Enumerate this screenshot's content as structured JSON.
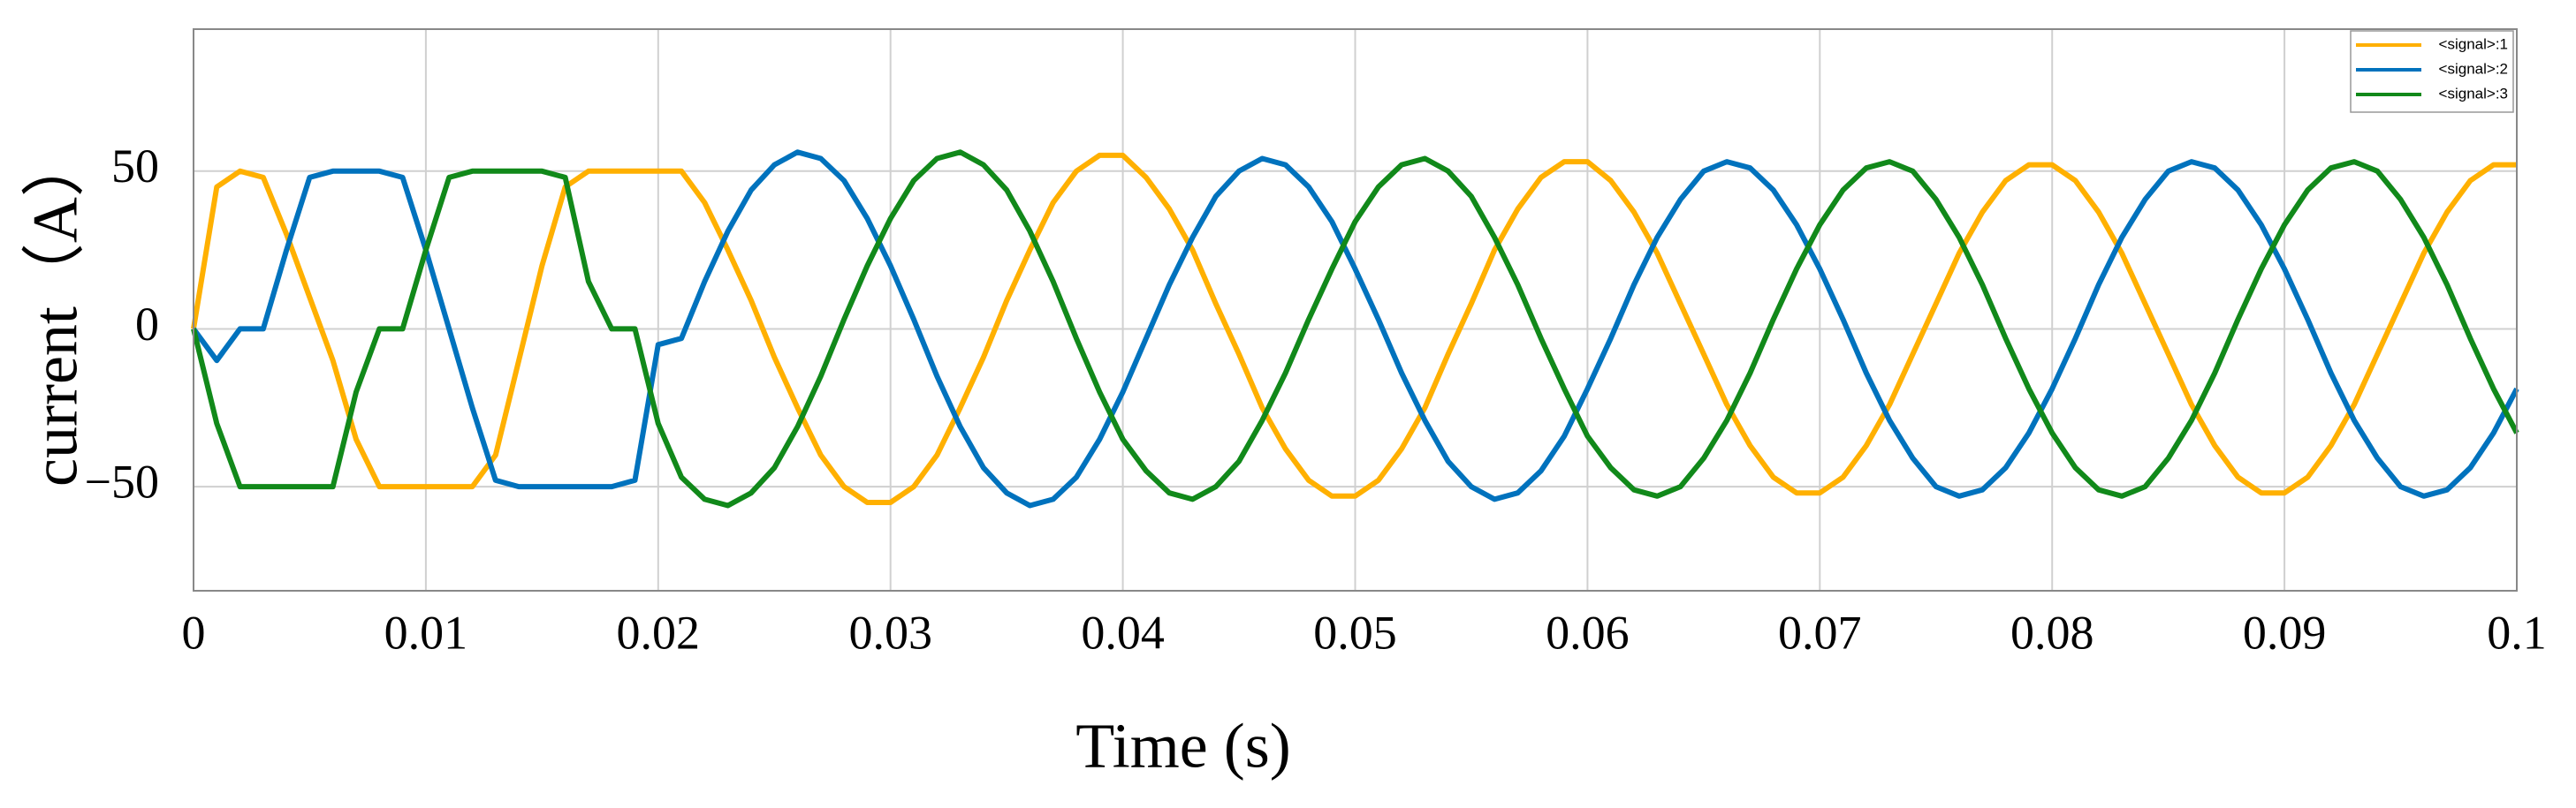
{
  "chart_data": {
    "type": "line",
    "x_label": "Time (s)",
    "y_label": "current（A）",
    "xlim": [
      0,
      0.1
    ],
    "xticks": [
      0,
      0.01,
      0.02,
      0.03,
      0.04,
      0.05,
      0.06,
      0.07,
      0.08,
      0.09,
      0.1
    ],
    "ylim": [
      -83,
      95
    ],
    "yticks": [
      {
        "value": -50,
        "label": "−50"
      },
      0,
      50
    ],
    "grid": true,
    "legend": "top-right",
    "x": [
      0,
      0.001,
      0.002,
      0.003,
      0.004,
      0.005,
      0.006,
      0.007,
      0.008,
      0.009,
      0.01,
      0.011,
      0.012,
      0.013,
      0.014,
      0.015,
      0.016,
      0.017,
      0.018,
      0.019,
      0.02,
      0.021,
      0.022,
      0.023,
      0.024,
      0.025,
      0.026,
      0.027,
      0.028,
      0.029,
      0.03,
      0.031,
      0.032,
      0.033,
      0.034,
      0.035,
      0.036,
      0.037,
      0.038,
      0.039,
      0.04,
      0.041,
      0.042,
      0.043,
      0.044,
      0.045,
      0.046,
      0.047,
      0.048,
      0.049,
      0.05,
      0.051,
      0.052,
      0.053,
      0.054,
      0.055,
      0.056,
      0.057,
      0.058,
      0.059,
      0.06,
      0.061,
      0.062,
      0.063,
      0.064,
      0.065,
      0.066,
      0.067,
      0.068,
      0.069,
      0.07,
      0.071,
      0.072,
      0.073,
      0.074,
      0.075,
      0.076,
      0.077,
      0.078,
      0.079,
      0.08,
      0.081,
      0.082,
      0.083,
      0.084,
      0.085,
      0.086,
      0.087,
      0.088,
      0.089,
      0.09,
      0.091,
      0.092,
      0.093,
      0.094,
      0.095,
      0.096,
      0.097,
      0.098,
      0.099,
      0.1
    ],
    "series": [
      {
        "name": "<signal>:1",
        "color": "#ffb000",
        "values": [
          0,
          45,
          50,
          48,
          30,
          10,
          -10,
          -35,
          -50,
          -50,
          -50,
          -50,
          -50,
          -40,
          -10,
          20,
          45,
          50,
          50,
          50,
          50,
          50,
          40,
          25,
          9,
          -9,
          -25,
          -40,
          -50,
          -55,
          -55,
          -50,
          -40,
          -25,
          -9,
          9,
          25,
          40,
          50,
          55,
          55,
          48,
          38,
          25,
          8,
          -8,
          -25,
          -38,
          -48,
          -53,
          -53,
          -48,
          -38,
          -25,
          -8,
          8,
          25,
          38,
          48,
          53,
          53,
          47,
          37,
          24,
          8,
          -8,
          -24,
          -37,
          -47,
          -52,
          -52,
          -47,
          -37,
          -24,
          -8,
          8,
          24,
          37,
          47,
          52,
          52,
          47,
          37,
          24,
          8,
          -8,
          -24,
          -37,
          -47,
          -52,
          -52,
          -47,
          -37,
          -24,
          -8,
          8,
          24,
          37,
          47,
          52,
          52
        ]
      },
      {
        "name": "<signal>:2",
        "color": "#0072bd",
        "values": [
          0,
          -10,
          0,
          0,
          25,
          48,
          50,
          50,
          50,
          48,
          25,
          0,
          -25,
          -48,
          -50,
          -50,
          -50,
          -50,
          -50,
          -48,
          -5,
          -3,
          15,
          31,
          44,
          52,
          56,
          54,
          47,
          35,
          20,
          3,
          -15,
          -31,
          -44,
          -52,
          -56,
          -54,
          -47,
          -35,
          -20,
          -3,
          14,
          29,
          42,
          50,
          54,
          52,
          45,
          34,
          19,
          3,
          -14,
          -29,
          -42,
          -50,
          -54,
          -52,
          -45,
          -34,
          -19,
          -3,
          14,
          29,
          41,
          50,
          53,
          51,
          44,
          33,
          19,
          3,
          -14,
          -29,
          -41,
          -50,
          -53,
          -51,
          -44,
          -33,
          -19,
          -3,
          14,
          29,
          41,
          50,
          53,
          51,
          44,
          33,
          19,
          3,
          -14,
          -29,
          -41,
          -50,
          -53,
          -51,
          -44,
          -33,
          -19
        ]
      },
      {
        "name": "<signal>:3",
        "color": "#11891a",
        "values": [
          0,
          -30,
          -50,
          -50,
          -50,
          -50,
          -50,
          -20,
          0,
          0,
          25,
          48,
          50,
          50,
          50,
          50,
          48,
          15,
          0,
          0,
          -30,
          -47,
          -54,
          -56,
          -52,
          -44,
          -31,
          -15,
          3,
          20,
          35,
          47,
          54,
          56,
          52,
          44,
          31,
          15,
          -3,
          -20,
          -35,
          -45,
          -52,
          -54,
          -50,
          -42,
          -29,
          -14,
          3,
          19,
          34,
          45,
          52,
          54,
          50,
          42,
          29,
          14,
          -3,
          -19,
          -34,
          -44,
          -51,
          -53,
          -50,
          -41,
          -29,
          -14,
          3,
          19,
          33,
          44,
          51,
          53,
          50,
          41,
          29,
          14,
          -3,
          -19,
          -33,
          -44,
          -51,
          -53,
          -50,
          -41,
          -29,
          -14,
          3,
          19,
          33,
          44,
          51,
          53,
          50,
          41,
          29,
          14,
          -3,
          -19,
          -33
        ]
      }
    ]
  }
}
